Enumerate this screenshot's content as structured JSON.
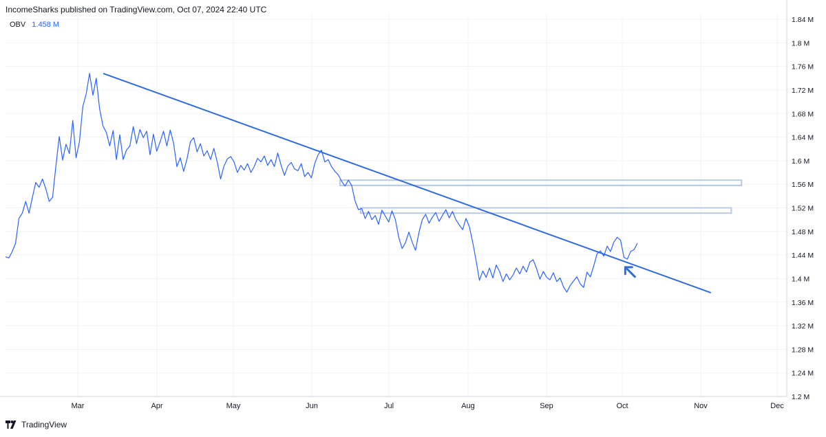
{
  "header": {
    "published_text": "IncomeSharks published on TradingView.com, Oct 07, 2024 22:40 UTC"
  },
  "legend": {
    "indicator": "OBV",
    "value": "1.458 M"
  },
  "footer": {
    "brand": "TradingView",
    "logo_icon": "tradingview-logo-icon"
  },
  "colors": {
    "line": "#2962ff",
    "trendline": "#2f6bdc",
    "zone_stroke": "#b7c9e8",
    "zone_fill": "rgba(255,255,255,0)",
    "grid": "#f0f3fa",
    "axis_text": "#131722"
  },
  "chart_data": {
    "type": "line",
    "title": "",
    "xlabel": "",
    "ylabel": "",
    "x_ticks": [
      "Mar",
      "Apr",
      "May",
      "Jun",
      "Jul",
      "Aug",
      "Sep",
      "Oct",
      "Nov",
      "Dec"
    ],
    "y_ticks": [
      "1.84 M",
      "1.8 M",
      "1.76 M",
      "1.72 M",
      "1.68 M",
      "1.64 M",
      "1.6 M",
      "1.56 M",
      "1.52 M",
      "1.48 M",
      "1.44 M",
      "1.4 M",
      "1.36 M",
      "1.32 M",
      "1.28 M",
      "1.24 M",
      "1.2 M"
    ],
    "ylim": [
      1.2,
      1.84
    ],
    "y_unit": "M",
    "grid": true,
    "series": [
      {
        "values": [
          1.437,
          1.435,
          1.446,
          1.46,
          1.502,
          1.511,
          1.531,
          1.511,
          1.538,
          1.563,
          1.555,
          1.569,
          1.552,
          1.531,
          1.538,
          1.591,
          1.641,
          1.601,
          1.628,
          1.612,
          1.668,
          1.605,
          1.632,
          1.692,
          1.713,
          1.748,
          1.711,
          1.74,
          1.688,
          1.659,
          1.648,
          1.625,
          1.651,
          1.602,
          1.644,
          1.602,
          1.618,
          1.625,
          1.658,
          1.629,
          1.653,
          1.639,
          1.65,
          1.61,
          1.645,
          1.616,
          1.632,
          1.65,
          1.625,
          1.652,
          1.63,
          1.59,
          1.605,
          1.582,
          1.603,
          1.632,
          1.639,
          1.615,
          1.629,
          1.608,
          1.617,
          1.602,
          1.621,
          1.598,
          1.569,
          1.591,
          1.603,
          1.607,
          1.598,
          1.58,
          1.592,
          1.584,
          1.595,
          1.58,
          1.59,
          1.604,
          1.598,
          1.608,
          1.592,
          1.602,
          1.59,
          1.613,
          1.592,
          1.575,
          1.591,
          1.597,
          1.586,
          1.583,
          1.595,
          1.573,
          1.58,
          1.571,
          1.595,
          1.61,
          1.618,
          1.598,
          1.602,
          1.59,
          1.582,
          1.576,
          1.565,
          1.557,
          1.567,
          1.558,
          1.532,
          1.517,
          1.519,
          1.502,
          1.514,
          1.5,
          1.507,
          1.492,
          1.516,
          1.506,
          1.496,
          1.515,
          1.5,
          1.47,
          1.451,
          1.461,
          1.479,
          1.462,
          1.448,
          1.478,
          1.5,
          1.509,
          1.494,
          1.504,
          1.512,
          1.497,
          1.507,
          1.517,
          1.503,
          1.514,
          1.5,
          1.491,
          1.483,
          1.502,
          1.488,
          1.462,
          1.431,
          1.397,
          1.413,
          1.402,
          1.418,
          1.401,
          1.423,
          1.412,
          1.395,
          1.408,
          1.398,
          1.406,
          1.418,
          1.408,
          1.421,
          1.411,
          1.428,
          1.432,
          1.417,
          1.399,
          1.412,
          1.402,
          1.398,
          1.41,
          1.395,
          1.401,
          1.386,
          1.377,
          1.388,
          1.396,
          1.403,
          1.391,
          1.385,
          1.411,
          1.403,
          1.421,
          1.442,
          1.447,
          1.438,
          1.455,
          1.446,
          1.462,
          1.47,
          1.465,
          1.436,
          1.433,
          1.446,
          1.449,
          1.46
        ]
      }
    ],
    "trendline": {
      "start": {
        "date": "Mar 11",
        "value": 1.748
      },
      "end": {
        "date": "Nov 05",
        "value": 1.376
      }
    },
    "zones": [
      {
        "from_date": "Jun 12",
        "to_date": "Nov 17",
        "low": 1.558,
        "high": 1.567
      },
      {
        "from_date": "Jun 20",
        "to_date": "Nov 13",
        "low": 1.511,
        "high": 1.52
      }
    ],
    "annotation": {
      "icon": "arrow-pointer-icon",
      "date": "Sep 30",
      "value": 1.41,
      "color": "#2f6bdc"
    }
  }
}
